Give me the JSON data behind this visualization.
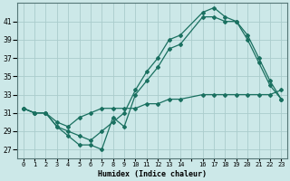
{
  "xlabel": "Humidex (Indice chaleur)",
  "background_color": "#cce8e8",
  "grid_color": "#aacccc",
  "line_color": "#1a7060",
  "xlim": [
    -0.5,
    23.5
  ],
  "ylim": [
    26.0,
    43.0
  ],
  "yticks": [
    27,
    29,
    31,
    33,
    35,
    37,
    39,
    41
  ],
  "xtick_labels": [
    "0",
    "1",
    "2",
    "3",
    "4",
    "5",
    "6",
    "7",
    "8",
    "9",
    "10",
    "11",
    "12",
    "13",
    "14",
    "",
    "16",
    "17",
    "18",
    "19",
    "20",
    "21",
    "22",
    "23"
  ],
  "line_low_x": [
    0,
    1,
    2,
    3,
    4,
    5,
    6,
    7,
    8,
    9,
    10,
    11,
    12,
    13,
    14,
    16,
    17,
    18,
    19,
    20,
    21,
    22,
    23
  ],
  "line_low_y": [
    31.5,
    31.0,
    31.0,
    29.5,
    28.5,
    27.5,
    27.5,
    27.0,
    30.5,
    29.5,
    33.0,
    34.5,
    36.0,
    38.0,
    38.5,
    41.5,
    41.5,
    41.0,
    41.0,
    39.0,
    36.5,
    34.0,
    32.5
  ],
  "line_high_x": [
    0,
    1,
    2,
    3,
    4,
    5,
    6,
    7,
    8,
    9,
    10,
    11,
    12,
    13,
    14,
    16,
    17,
    18,
    19,
    20,
    21,
    22,
    23
  ],
  "line_high_y": [
    31.5,
    31.0,
    31.0,
    29.5,
    29.0,
    28.5,
    28.0,
    29.0,
    30.0,
    31.0,
    33.5,
    35.5,
    37.0,
    39.0,
    39.5,
    42.0,
    42.5,
    41.5,
    41.0,
    39.5,
    37.0,
    34.5,
    32.5
  ],
  "line_flat_x": [
    0,
    1,
    2,
    3,
    4,
    5,
    6,
    7,
    8,
    9,
    10,
    11,
    12,
    13,
    14,
    16,
    17,
    18,
    19,
    20,
    21,
    22,
    23
  ],
  "line_flat_y": [
    31.5,
    31.0,
    31.0,
    30.0,
    29.5,
    30.5,
    31.0,
    31.5,
    31.5,
    31.5,
    31.5,
    32.0,
    32.0,
    32.5,
    32.5,
    33.0,
    33.0,
    33.0,
    33.0,
    33.0,
    33.0,
    33.0,
    33.5
  ]
}
